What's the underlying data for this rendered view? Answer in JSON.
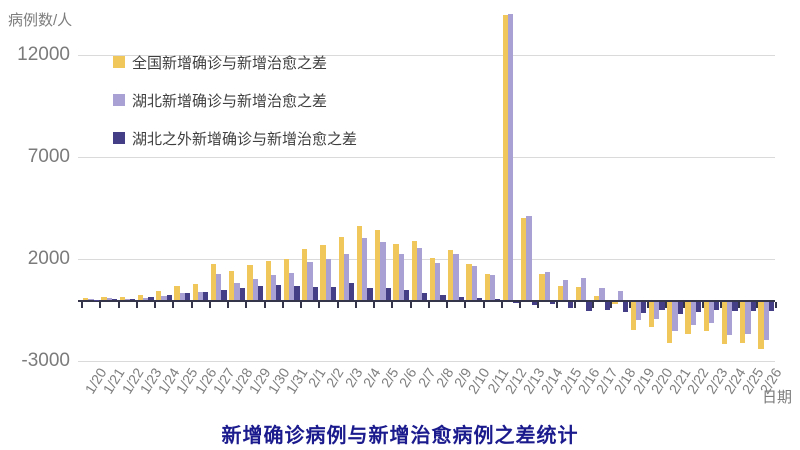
{
  "chart": {
    "title": "新增确诊病例与新增治愈病例之差统计",
    "y_axis_title": "病例数/人",
    "x_axis_title": "日期"
  },
  "chart_data": {
    "type": "bar",
    "title": "新增确诊病例与新增治愈病例之差统计",
    "ylabel": "病例数/人",
    "xlabel": "日期",
    "grid": "horizontal",
    "legend_position": "top-left-inside",
    "ylim": [
      -3200,
      14300
    ],
    "y_ticks": [
      12000,
      7000,
      2000,
      -3000
    ],
    "categories": [
      "1/20",
      "1/21",
      "1/22",
      "1/23",
      "1/24",
      "1/25",
      "1/26",
      "1/27",
      "1/28",
      "1/29",
      "1/30",
      "1/31",
      "2/1",
      "2/2",
      "2/3",
      "2/4",
      "2/5",
      "2/6",
      "2/7",
      "2/8",
      "2/9",
      "2/10",
      "2/11",
      "2/12",
      "2/13",
      "2/14",
      "2/15",
      "2/16",
      "2/17",
      "2/18",
      "2/19",
      "2/20",
      "2/21",
      "2/22",
      "2/23",
      "2/24",
      "2/25",
      "2/26"
    ],
    "series": [
      {
        "name": "全国新增确诊与新增治愈之差",
        "color": "#efc75a",
        "values": [
          75,
          150,
          125,
          255,
          440,
          675,
          765,
          1760,
          1415,
          1715,
          1935,
          2030,
          2505,
          2680,
          3080,
          3625,
          3435,
          2755,
          2890,
          2055,
          2430,
          1760,
          1270,
          13980,
          4010,
          1270,
          685,
          625,
          185,
          -75,
          -1385,
          -1220,
          -1995,
          -1580,
          -1435,
          -2080,
          -2015,
          -2315
        ]
      },
      {
        "name": "湖北新增确诊与新增治愈之差",
        "color": "#a9a1d3",
        "values": [
          70,
          105,
          65,
          100,
          180,
          320,
          370,
          1290,
          840,
          1030,
          1215,
          1340,
          1870,
          2020,
          2250,
          3030,
          2845,
          2260,
          2570,
          1830,
          2260,
          1670,
          1220,
          14040,
          4130,
          1360,
          995,
          1060,
          585,
          425,
          -860,
          -820,
          -1400,
          -1110,
          -1040,
          -1615,
          -1555,
          -1880
        ]
      },
      {
        "name": "湖北之外新增确诊与新增治愈之差",
        "color": "#443e87",
        "values": [
          5,
          45,
          60,
          155,
          260,
          355,
          395,
          470,
          575,
          685,
          720,
          690,
          635,
          660,
          830,
          595,
          590,
          495,
          320,
          225,
          170,
          90,
          50,
          -60,
          -125,
          -90,
          -310,
          -435,
          -400,
          -500,
          -525,
          -400,
          -595,
          -470,
          -395,
          -465,
          -460,
          -435
        ]
      }
    ],
    "colors": {
      "gridline": "#dadada",
      "axis_line": "#34344a",
      "tick_label": "#7b7b7b",
      "title": "#1b1b8e"
    }
  }
}
